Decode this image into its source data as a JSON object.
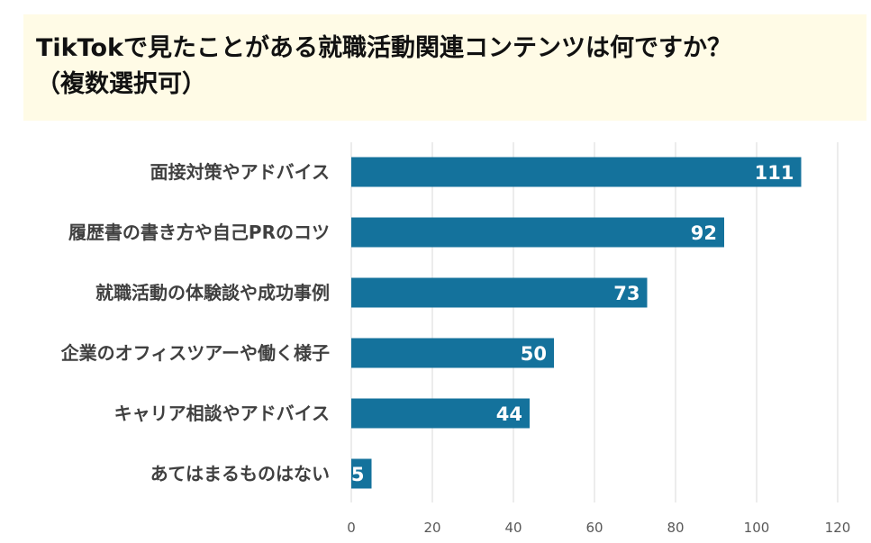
{
  "title": {
    "line1": "TikTokで見たことがある就職活動関連コンテンツは何ですか？",
    "line2": "（複数選択可）"
  },
  "colors": {
    "bar": "#14729c",
    "title_bg": "#fffbe6",
    "grid": "#d9d9d9",
    "label": "#404040",
    "tick": "#595959",
    "data_label": "#ffffff"
  },
  "chart_data": {
    "type": "bar",
    "orientation": "horizontal",
    "categories": [
      "面接対策やアドバイス",
      "履歴書の書き方や自己PRのコツ",
      "就職活動の体験談や成功事例",
      "企業のオフィスツアーや働く様子",
      "キャリア相談やアドバイス",
      "あてはまるものはない"
    ],
    "values": [
      111,
      92,
      73,
      50,
      44,
      5
    ],
    "xlim": [
      0,
      120
    ],
    "xticks": [
      0,
      20,
      40,
      60,
      80,
      100,
      120
    ],
    "grid": true,
    "data_labels": true
  }
}
